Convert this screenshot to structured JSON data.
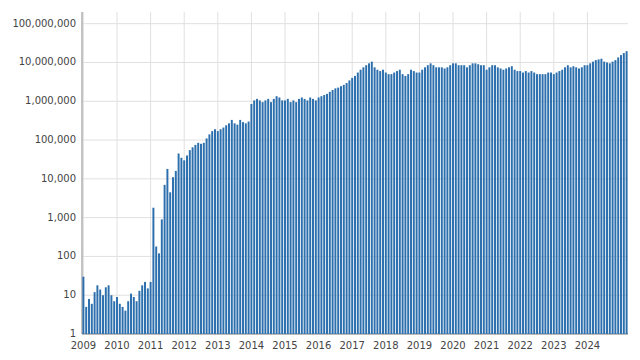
{
  "chart_data": {
    "type": "bar",
    "categories": [
      "2009",
      null,
      null,
      null,
      null,
      null,
      null,
      null,
      null,
      null,
      null,
      null,
      "2010",
      null,
      null,
      null,
      null,
      null,
      null,
      null,
      null,
      null,
      null,
      null,
      "2011",
      null,
      null,
      null,
      null,
      null,
      null,
      null,
      null,
      null,
      null,
      null,
      "2012",
      null,
      null,
      null,
      null,
      null,
      null,
      null,
      null,
      null,
      null,
      null,
      "2013",
      null,
      null,
      null,
      null,
      null,
      null,
      null,
      null,
      null,
      null,
      null,
      "2014",
      null,
      null,
      null,
      null,
      null,
      null,
      null,
      null,
      null,
      null,
      null,
      "2015",
      null,
      null,
      null,
      null,
      null,
      null,
      null,
      null,
      null,
      null,
      null,
      "2016",
      null,
      null,
      null,
      null,
      null,
      null,
      null,
      null,
      null,
      null,
      null,
      "2017",
      null,
      null,
      null,
      null,
      null,
      null,
      null,
      null,
      null,
      null,
      null,
      "2018",
      null,
      null,
      null,
      null,
      null,
      null,
      null,
      null,
      null,
      null,
      null,
      "2019",
      null,
      null,
      null,
      null,
      null,
      null,
      null,
      null,
      null,
      null,
      null,
      "2020",
      null,
      null,
      null,
      null,
      null,
      null,
      null,
      null,
      null,
      null,
      null,
      "2021",
      null,
      null,
      null,
      null,
      null,
      null,
      null,
      null,
      null,
      null,
      null,
      "2022",
      null,
      null,
      null,
      null,
      null,
      null,
      null,
      null,
      null,
      null,
      null,
      "2023",
      null,
      null,
      null,
      null,
      null,
      null,
      null,
      null,
      null,
      null,
      null,
      "2024",
      null,
      null,
      null,
      null,
      null,
      null,
      null,
      null,
      null,
      null,
      null,
      null,
      null,
      null
    ],
    "values": [
      30,
      5,
      8,
      6,
      12,
      18,
      14,
      10,
      16,
      18,
      10,
      7,
      9,
      6,
      5,
      4,
      7,
      11,
      9,
      7,
      13,
      18,
      22,
      15,
      22,
      1800,
      180,
      120,
      900,
      7000,
      18000,
      4500,
      11000,
      16000,
      45000,
      35000,
      30000,
      40000,
      55000,
      65000,
      75000,
      85000,
      80000,
      85000,
      110000,
      140000,
      170000,
      190000,
      170000,
      190000,
      210000,
      240000,
      270000,
      330000,
      270000,
      250000,
      330000,
      290000,
      270000,
      300000,
      850000,
      1050000,
      1150000,
      1050000,
      950000,
      1050000,
      1150000,
      950000,
      1150000,
      1350000,
      1250000,
      1050000,
      1050000,
      1150000,
      950000,
      1050000,
      950000,
      1150000,
      1250000,
      1150000,
      1050000,
      1250000,
      1150000,
      1050000,
      1250000,
      1350000,
      1450000,
      1550000,
      1750000,
      1950000,
      2150000,
      2250000,
      2450000,
      2650000,
      2950000,
      3450000,
      4000000,
      4500000,
      5500000,
      6500000,
      7500000,
      8500000,
      9500000,
      10500000,
      7500000,
      6500000,
      6000000,
      6500000,
      5500000,
      5000000,
      5000000,
      5500000,
      6000000,
      6500000,
      5000000,
      4500000,
      5000000,
      6500000,
      6000000,
      5500000,
      5500000,
      6500000,
      7500000,
      8500000,
      9500000,
      8500000,
      7500000,
      7500000,
      7500000,
      7000000,
      7500000,
      8500000,
      9500000,
      9500000,
      8500000,
      8500000,
      8500000,
      7500000,
      8500000,
      9500000,
      9500000,
      9000000,
      8500000,
      8500000,
      6500000,
      7500000,
      8500000,
      8500000,
      7500000,
      7000000,
      6500000,
      7000000,
      7500000,
      8000000,
      6500000,
      6000000,
      6000000,
      5500000,
      6000000,
      5500000,
      6000000,
      5500000,
      5000000,
      5000000,
      5000000,
      5000000,
      5500000,
      5500000,
      5000000,
      5500000,
      6000000,
      6500000,
      7500000,
      8500000,
      7500000,
      8000000,
      7500000,
      7000000,
      7500000,
      8500000,
      8500000,
      9500000,
      10500000,
      11500000,
      12000000,
      12500000,
      10500000,
      10000000,
      9500000,
      10500000,
      11500000,
      13500000,
      15500000,
      17500000,
      19500000
    ],
    "color": "#2c6fad",
    "log": "y",
    "ylim": [
      1,
      200000000
    ],
    "yticks": [
      1,
      10,
      100,
      {
        "value": 1000,
        "label": "1,000"
      },
      {
        "value": 10000,
        "label": "10,000"
      },
      {
        "value": 100000,
        "label": "100,000"
      },
      {
        "value": 1000000,
        "label": "1,000,000"
      },
      {
        "value": 10000000,
        "label": "10,000,000"
      },
      {
        "value": 100000000,
        "label": "100,000,000"
      }
    ],
    "grid": true
  }
}
